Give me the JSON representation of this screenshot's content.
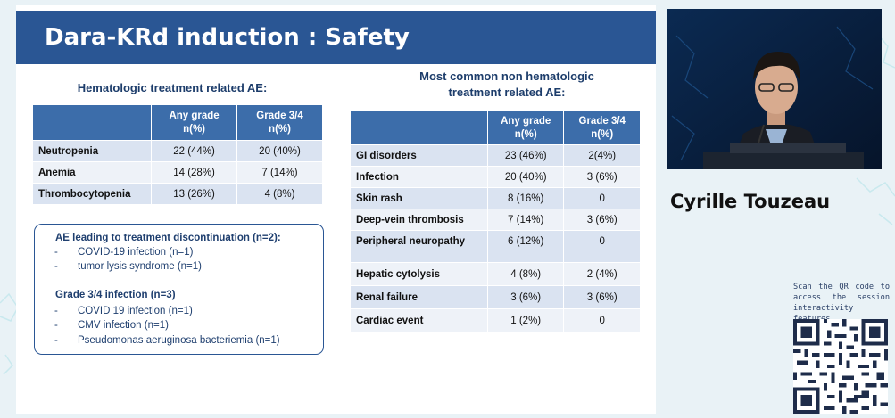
{
  "slide": {
    "title": "Dara-KRd induction : Safety",
    "hematologic": {
      "title": "Hematologic treatment related AE:",
      "headers": [
        "",
        "Any grade\nn(%)",
        "Grade 3/4\nn(%)"
      ],
      "header_any_1": "Any grade",
      "header_any_2": "n(%)",
      "header_g34_1": "Grade 3/4",
      "header_g34_2": "n(%)",
      "rows": [
        {
          "name": "Neutropenia",
          "any": "22 (44%)",
          "g34": "20 (40%)"
        },
        {
          "name": "Anemia",
          "any": "14 (28%)",
          "g34": "7 (14%)"
        },
        {
          "name": "Thrombocytopenia",
          "any": "13 (26%)",
          "g34": "4 (8%)"
        }
      ]
    },
    "infobox": {
      "discontinuation_title": "AE leading to treatment discontinuation (n=2):",
      "discontinuation_items": [
        "COVID-19 infection (n=1)",
        "tumor lysis syndrome (n=1)"
      ],
      "infection_title": "Grade 3/4 infection (n=3)",
      "infection_items": [
        "COVID 19 infection (n=1)",
        "CMV infection (n=1)",
        "Pseudomonas aeruginosa bacteriemia (n=1)"
      ],
      "bullet": "-"
    },
    "nonhematologic": {
      "title_line1": "Most common non hematologic",
      "title_line2": "treatment related AE:",
      "header_any_1": "Any grade",
      "header_any_2": "n(%)",
      "header_g34_1": "Grade 3/4",
      "header_g34_2": "n(%)",
      "rows": [
        {
          "name": "GI disorders",
          "any": "23 (46%)",
          "g34": "2(4%)"
        },
        {
          "name": "Infection",
          "any": "20 (40%)",
          "g34": "3 (6%)"
        },
        {
          "name": "Skin rash",
          "any": "8 (16%)",
          "g34": "0"
        },
        {
          "name": "Deep-vein thrombosis",
          "any": "7 (14%)",
          "g34": "3 (6%)"
        },
        {
          "name": "Peripheral neuropathy",
          "any": "6 (12%)",
          "g34": "0"
        },
        {
          "name": "Hepatic cytolysis",
          "any": "4 (8%)",
          "g34": "2 (4%)"
        },
        {
          "name": "Renal failure",
          "any": "3 (6%)",
          "g34": "3 (6%)"
        },
        {
          "name": "Cardiac event",
          "any": "1 (2%)",
          "g34": "0"
        }
      ]
    }
  },
  "speaker": {
    "name": "Cyrille Touzeau"
  },
  "qr": {
    "caption": "Scan the QR code to access the session interactivity features"
  },
  "colors": {
    "title_bar": "#2a5694",
    "table_header": "#3c6daa",
    "row_dark": "#dae3f1",
    "row_light": "#eef2f8",
    "background": "#e9f2f6"
  }
}
